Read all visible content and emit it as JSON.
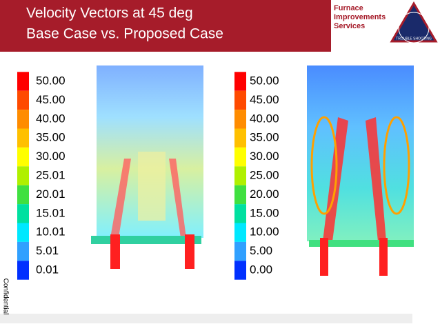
{
  "header": {
    "title_lines": [
      "Velocity Vectors at 45 deg",
      "Base Case vs. Proposed Case"
    ]
  },
  "logo": {
    "lines": [
      "Furnace",
      "Improvements",
      "Services"
    ],
    "ring_text": "TROUBLE SHOOTING"
  },
  "scale_colors": [
    "#ff0000",
    "#ff4a00",
    "#ff8c00",
    "#ffc000",
    "#ffff00",
    "#b0f000",
    "#40e040",
    "#00e0a0",
    "#00e8ff",
    "#30a0ff",
    "#0030ff"
  ],
  "legends": [
    {
      "labels": [
        "50.00",
        "45.00",
        "40.00",
        "35.00",
        "30.00",
        "25.01",
        "20.01",
        "15.01",
        "10.01",
        "5.01",
        "0.01"
      ]
    },
    {
      "labels": [
        "50.00",
        "45.00",
        "40.00",
        "35.00",
        "30.00",
        "25.00",
        "20.00",
        "15.00",
        "10.00",
        "5.00",
        "0.00"
      ]
    }
  ],
  "side_note": "Confidential"
}
